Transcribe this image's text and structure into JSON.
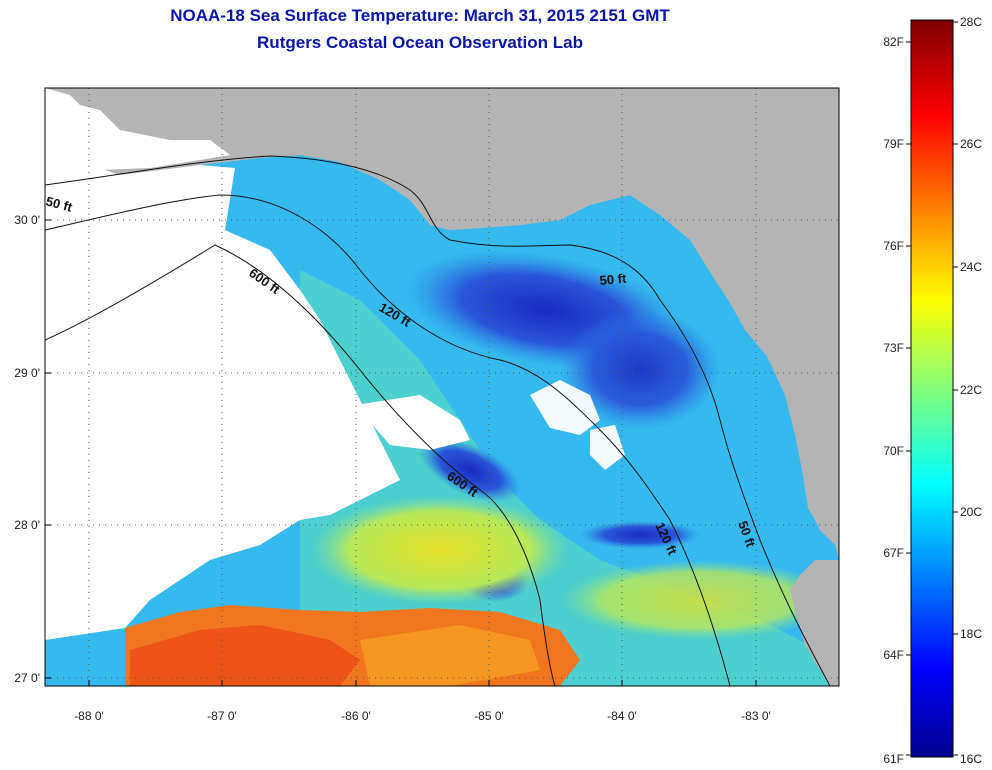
{
  "header": {
    "title": "NOAA-18 Sea Surface Temperature:  March 31, 2015 2151 GMT",
    "subtitle": "Rutgers Coastal Ocean Observation Lab"
  },
  "axes": {
    "lon_ticks": [
      "-88 0'",
      "-87 0'",
      "-86 0'",
      "-85 0'",
      "-84 0'",
      "-83 0'"
    ],
    "lat_ticks": [
      "30 0'",
      "29 0'",
      "28 0'",
      "27 0'"
    ]
  },
  "contour_labels": [
    "50 ft",
    "600 ft",
    "120 ft",
    "50 ft",
    "600 ft",
    "120 ft",
    "50 ft"
  ],
  "colorbar": {
    "celsius": [
      "28C",
      "26C",
      "24C",
      "22C",
      "20C",
      "18C",
      "16C"
    ],
    "fahrenheit": [
      "82F",
      "79F",
      "76F",
      "73F",
      "70F",
      "67F",
      "64F",
      "61F"
    ]
  },
  "colors": {
    "land": "#b4b4b4",
    "cold": "#1633c8",
    "cool": "#29a6ee",
    "mild": "#5fd8d0",
    "warm": "#e8e22a",
    "hot": "#f26a1b",
    "no_data": "#ffffff"
  }
}
